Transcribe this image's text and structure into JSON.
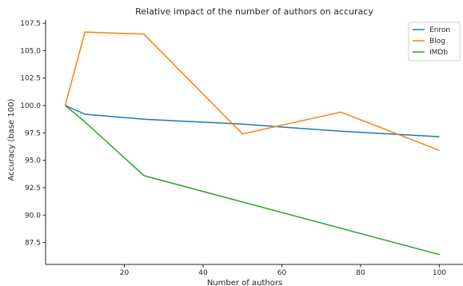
{
  "chart_data": {
    "type": "line",
    "title": "Relative impact of the number of authors on accuracy",
    "xlabel": "Number of authors",
    "ylabel": "Accuracy (base 100)",
    "xlim": [
      0,
      106
    ],
    "ylim": [
      85.5,
      107.8
    ],
    "xticks": [
      20,
      40,
      60,
      80,
      100
    ],
    "yticks": [
      87.5,
      90.0,
      92.5,
      95.0,
      97.5,
      100.0,
      102.5,
      105.0,
      107.5
    ],
    "grid": false,
    "legend_position": "top-right",
    "series": [
      {
        "name": "Enron",
        "color": "#1f77b4",
        "x": [
          5,
          10,
          25,
          50,
          75,
          100
        ],
        "y": [
          100.0,
          99.2,
          98.75,
          98.3,
          97.65,
          97.15
        ]
      },
      {
        "name": "Blog",
        "color": "#ff7f0e",
        "x": [
          5,
          10,
          25,
          50,
          75,
          100
        ],
        "y": [
          100.0,
          106.7,
          106.5,
          97.4,
          99.4,
          95.9
        ]
      },
      {
        "name": "IMDb",
        "color": "#2ca02c",
        "x": [
          5,
          10,
          25,
          100
        ],
        "y": [
          100.0,
          98.5,
          93.6,
          86.4
        ]
      }
    ]
  }
}
